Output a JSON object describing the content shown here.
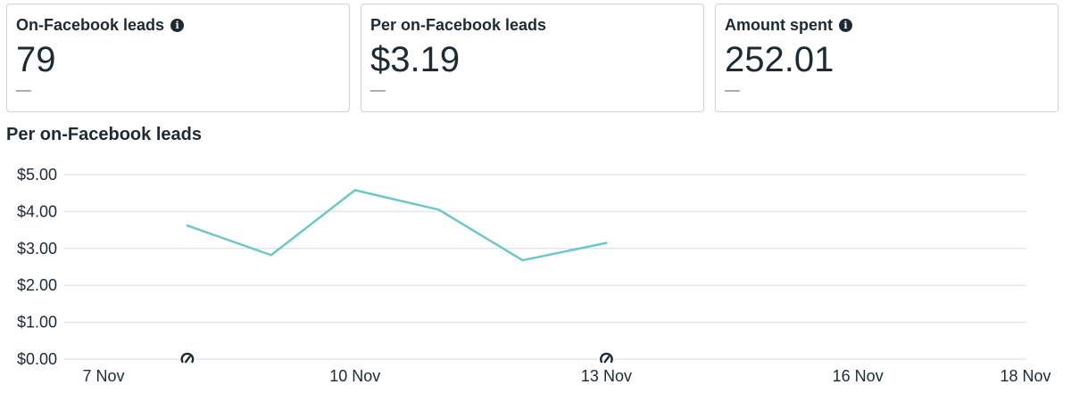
{
  "cards": [
    {
      "title": "On-Facebook leads",
      "has_info": true,
      "value": "79",
      "compare": "––"
    },
    {
      "title": "Per on-Facebook leads",
      "has_info": false,
      "value": "$3.19",
      "compare": "––"
    },
    {
      "title": "Amount spent",
      "has_info": true,
      "value": "252.01",
      "compare": "––"
    }
  ],
  "info_glyph": "i",
  "chart_title": "Per on-Facebook leads",
  "chart_data": {
    "type": "line",
    "title": "Per on-Facebook leads",
    "xlabel": "",
    "ylabel": "",
    "y_ticks": [
      "$0.00",
      "$1.00",
      "$2.00",
      "$3.00",
      "$4.00",
      "$5.00"
    ],
    "ylim": [
      0,
      5
    ],
    "x_ticks": [
      {
        "label": "7 Nov",
        "day": 7
      },
      {
        "label": "10 Nov",
        "day": 10
      },
      {
        "label": "13 Nov",
        "day": 13
      },
      {
        "label": "16 Nov",
        "day": 16
      },
      {
        "label": "18 Nov",
        "day": 18
      }
    ],
    "xlim": [
      "7 Nov",
      "18 Nov"
    ],
    "series": [
      {
        "color": "#6cc8c8",
        "x": [
          "8 Nov",
          "9 Nov",
          "10 Nov",
          "11 Nov",
          "12 Nov",
          "13 Nov"
        ],
        "values": [
          3.62,
          2.82,
          4.58,
          4.05,
          2.68,
          3.15
        ]
      }
    ],
    "annotation_icons": [
      {
        "icon": "edit-marker-icon",
        "x": "8 Nov"
      },
      {
        "icon": "edit-marker-icon",
        "x": "13 Nov"
      }
    ],
    "grid": true,
    "gridline_color": "#e4e6eb"
  }
}
